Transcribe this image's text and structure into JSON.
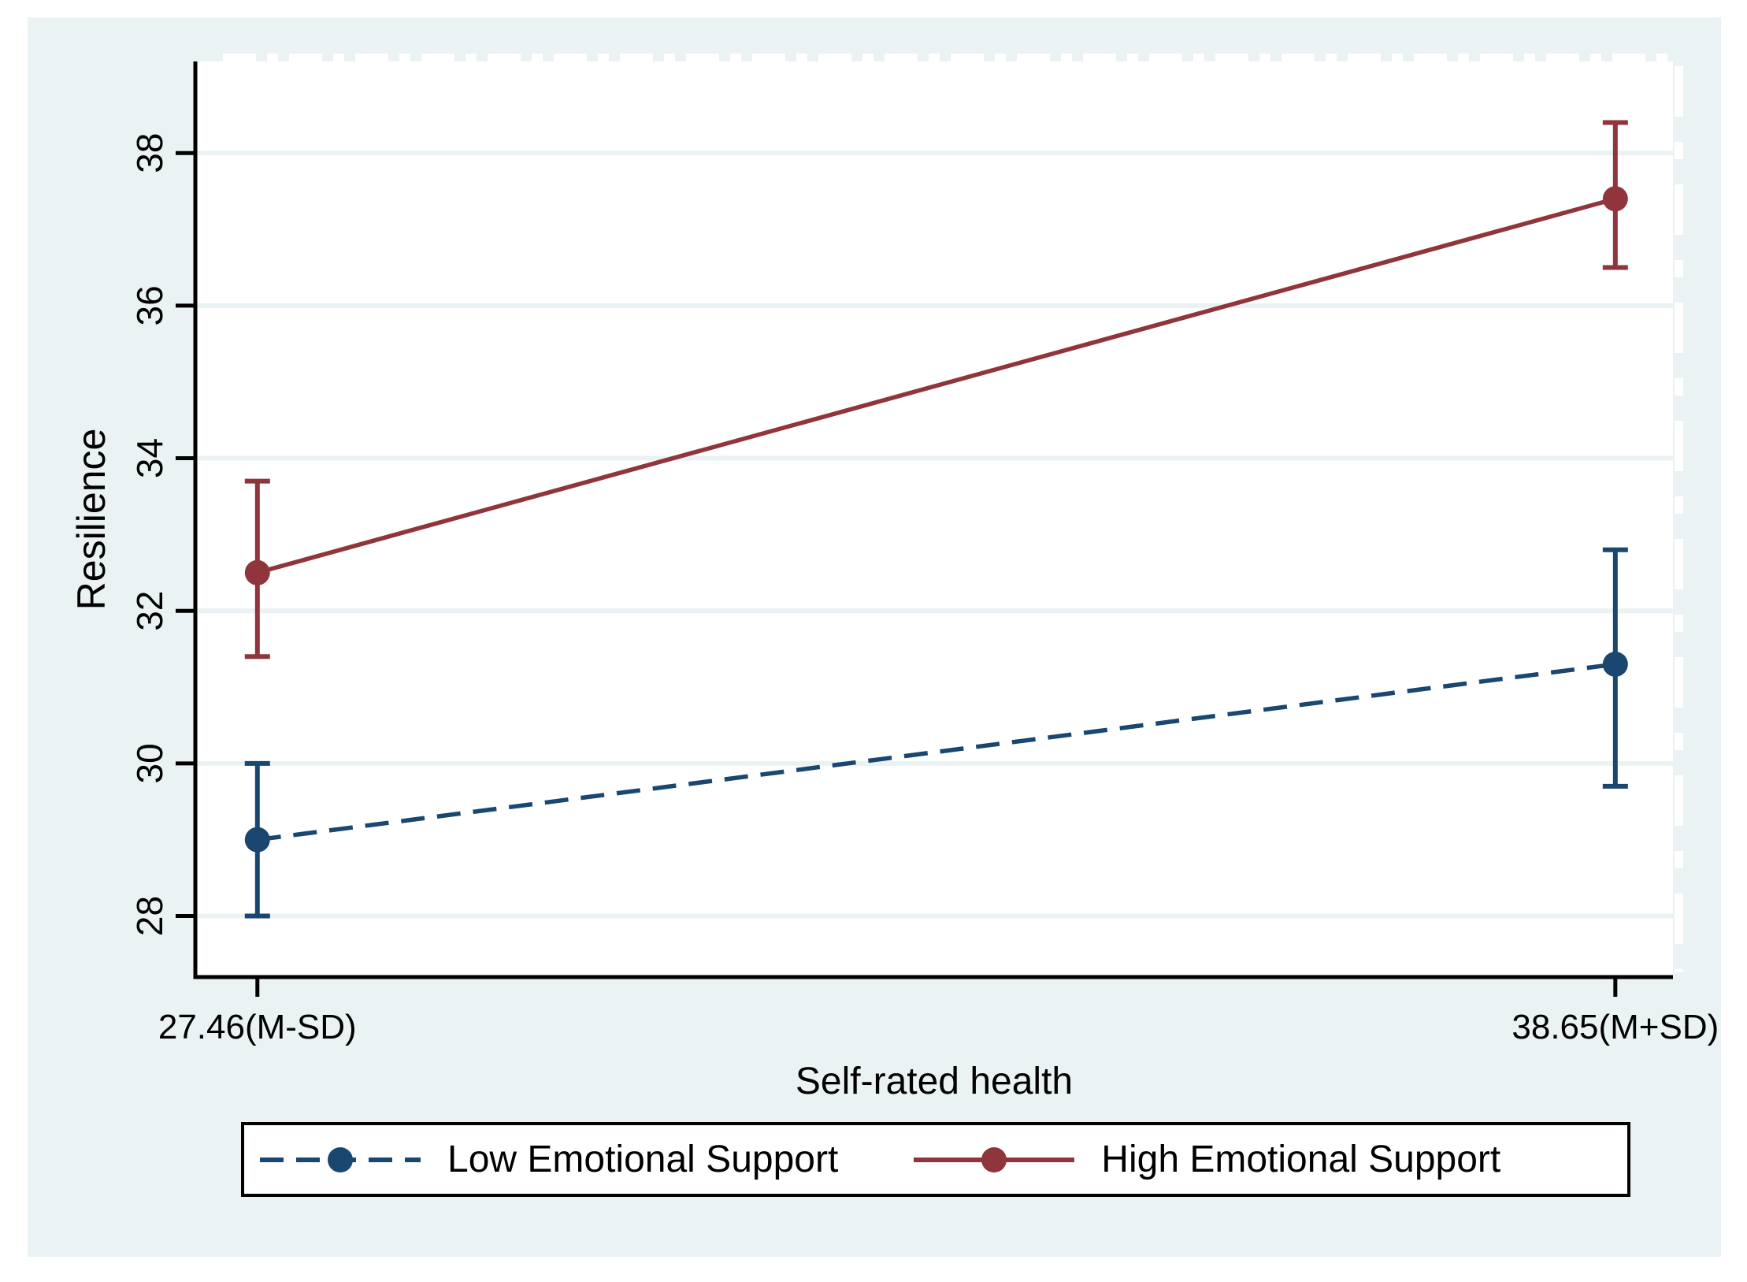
{
  "chart_data": {
    "type": "line",
    "title": "",
    "xlabel": "Self-rated health",
    "ylabel": "Resilience",
    "categories": [
      "27.46(M-SD)",
      "38.65(M+SD)"
    ],
    "series": [
      {
        "name": "Low Emotional Support",
        "color": "#1a476f",
        "line_style": "dashed",
        "marker": "circle",
        "values": [
          29.0,
          31.3
        ],
        "ci_low": [
          28.0,
          29.7
        ],
        "ci_high": [
          30.0,
          32.8
        ]
      },
      {
        "name": "High Emotional Support",
        "color": "#90353b",
        "line_style": "solid",
        "marker": "circle",
        "values": [
          32.5,
          37.4
        ],
        "ci_low": [
          31.4,
          36.5
        ],
        "ci_high": [
          33.7,
          38.4
        ]
      }
    ],
    "yticks": [
      28,
      30,
      32,
      34,
      36,
      38
    ],
    "ylim": [
      27.2,
      39.2
    ],
    "grid": true,
    "error_bars": true,
    "legend_position": "bottom"
  },
  "colors": {
    "background": "#eaf2f3",
    "plot_background": "#ffffff",
    "gridline": "#eaf2f3",
    "axis": "#000000",
    "text": "#000000",
    "legend_border": "#000000",
    "legend_background": "#ffffff",
    "navy": "#1a476f",
    "maroon": "#90353b"
  }
}
